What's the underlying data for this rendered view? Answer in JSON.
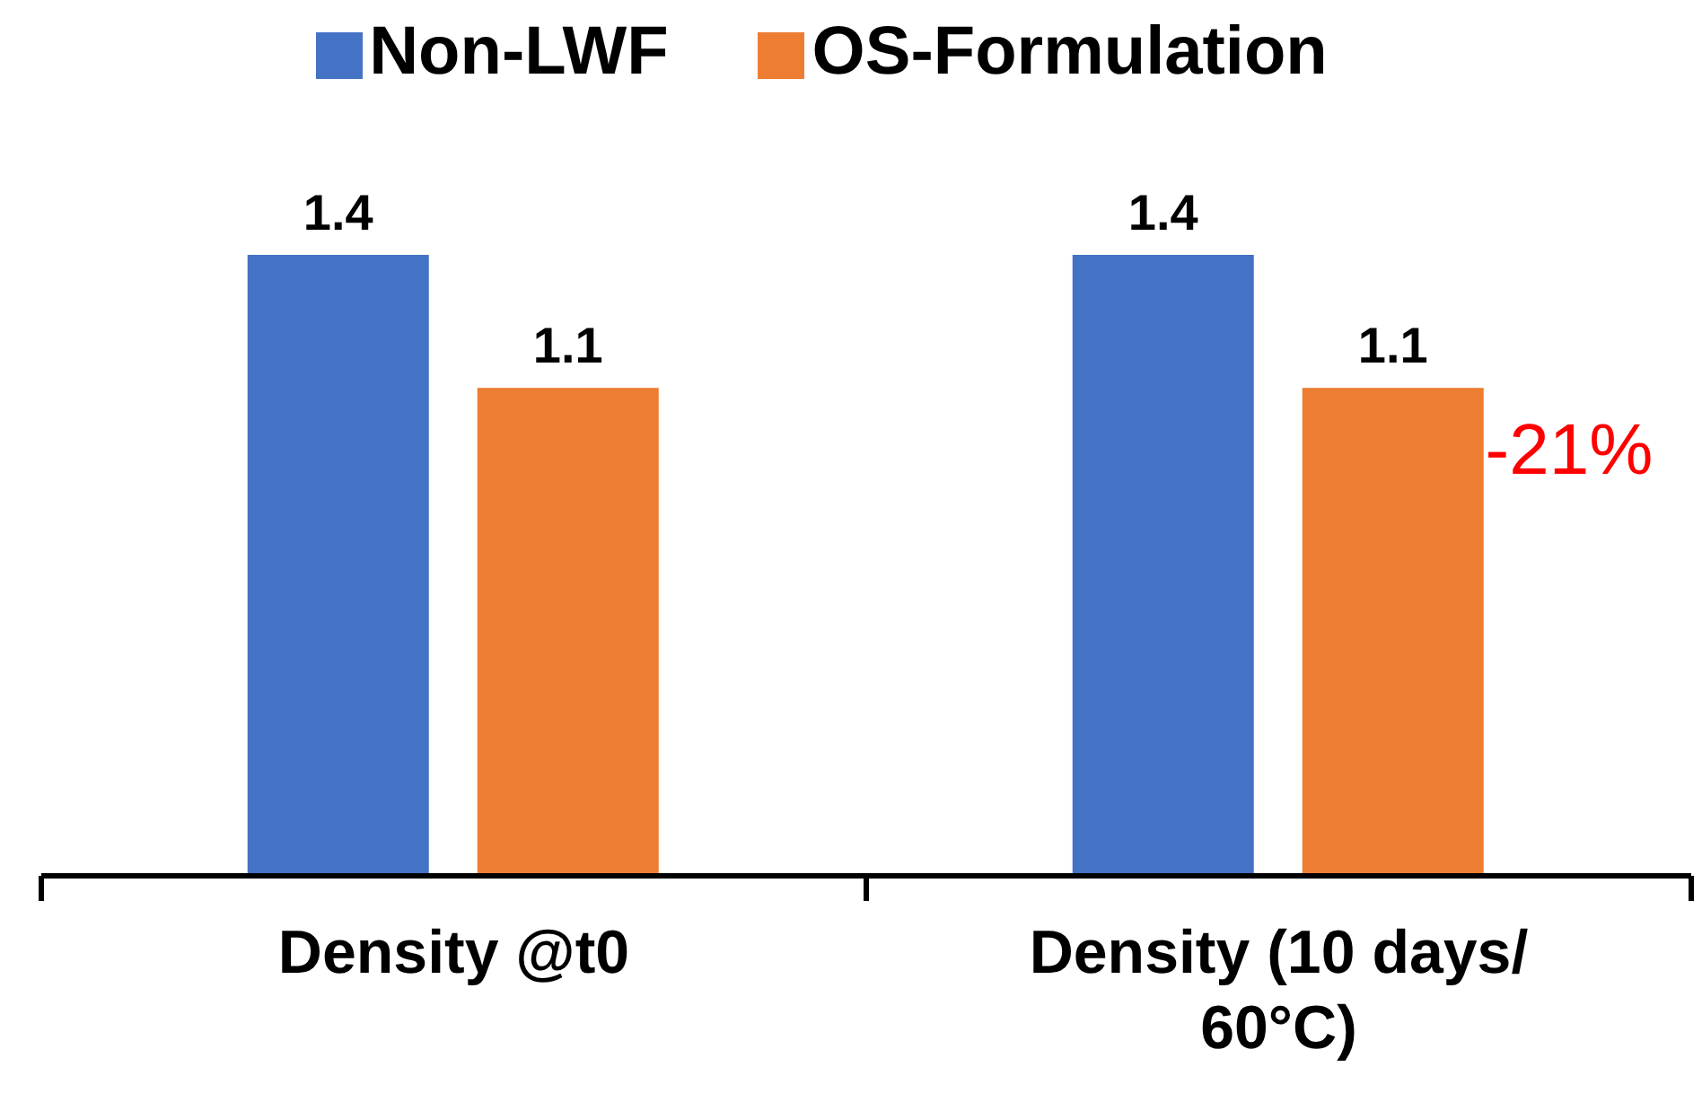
{
  "chart_data": {
    "type": "bar",
    "categories": [
      "Density @t0",
      "Density (10 days/ 60°C)"
    ],
    "series": [
      {
        "name": "Non-LWF",
        "color": "#4472c4",
        "values": [
          1.4,
          1.4
        ]
      },
      {
        "name": "OS-Formulation",
        "color": "#ed7d31",
        "values": [
          1.1,
          1.1
        ]
      }
    ],
    "tick_labels": "x",
    "data_labels": true,
    "legend": "top",
    "grid": false,
    "annotations": [
      "-21%"
    ]
  }
}
